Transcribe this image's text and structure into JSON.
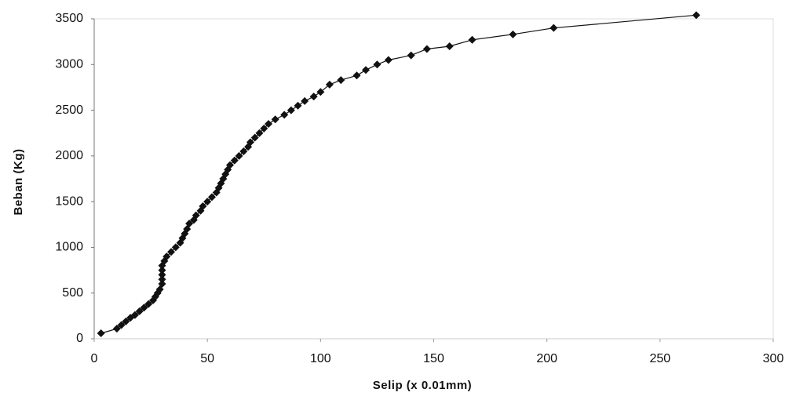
{
  "chart_data": {
    "type": "line",
    "x_label": "Selip (x 0.01mm)",
    "y_label": "Beban (Kg)",
    "color": "#111111",
    "x": [
      3,
      10,
      12,
      14,
      16,
      18,
      20,
      22,
      24,
      26,
      27,
      28,
      29,
      30,
      30,
      30,
      30,
      30,
      31,
      32,
      34,
      36,
      38,
      39,
      40,
      41,
      42,
      44,
      45,
      47,
      48,
      50,
      52,
      54,
      55,
      56,
      57,
      58,
      59,
      60,
      62,
      64,
      66,
      68,
      69,
      71,
      73,
      75,
      77,
      80,
      84,
      87,
      90,
      93,
      97,
      100,
      104,
      109,
      116,
      120,
      125,
      130,
      140,
      147,
      157,
      167,
      185,
      203,
      266
    ],
    "values": [
      60,
      110,
      150,
      190,
      230,
      260,
      300,
      340,
      380,
      420,
      460,
      500,
      540,
      600,
      650,
      700,
      750,
      800,
      850,
      900,
      950,
      1000,
      1050,
      1100,
      1150,
      1200,
      1260,
      1300,
      1350,
      1400,
      1450,
      1500,
      1550,
      1600,
      1650,
      1700,
      1750,
      1800,
      1850,
      1900,
      1950,
      2000,
      2050,
      2100,
      2150,
      2200,
      2250,
      2300,
      2350,
      2400,
      2450,
      2500,
      2550,
      2600,
      2650,
      2700,
      2780,
      2830,
      2880,
      2940,
      3000,
      3050,
      3100,
      3170,
      3200,
      3270,
      3330,
      3400,
      3540
    ],
    "xlim": [
      0,
      300
    ],
    "xticks": [
      0,
      50,
      100,
      150,
      200,
      250,
      300
    ],
    "ylim": [
      0,
      3500
    ],
    "yticks": [
      0,
      500,
      1000,
      1500,
      2000,
      2500,
      3000,
      3500
    ]
  }
}
